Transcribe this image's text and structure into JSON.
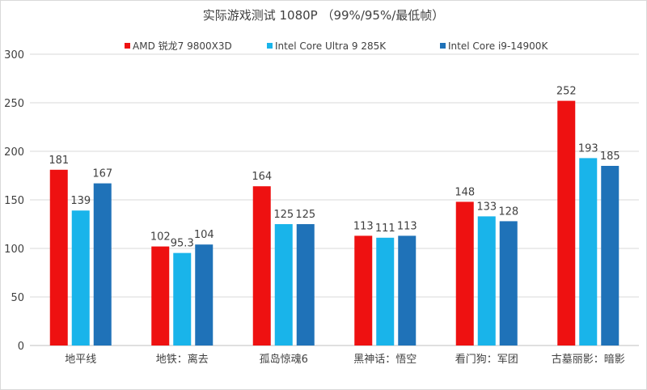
{
  "chart_data": {
    "type": "bar",
    "title": "实际游戏测试 1080P （99%/95%/最低帧）",
    "xlabel": "",
    "ylabel": "",
    "ylim": [
      0,
      300
    ],
    "yticks": [
      0,
      50,
      100,
      150,
      200,
      250,
      300
    ],
    "grid": true,
    "legend_position": "top",
    "categories": [
      "地平线",
      "地铁：离去",
      "孤岛惊魂6",
      "黑神话：悟空",
      "看门狗：军团",
      "古墓丽影：暗影"
    ],
    "series": [
      {
        "name": "AMD 锐龙7 9800X3D",
        "color": "#ee1111",
        "values": [
          181,
          102,
          164,
          113,
          148,
          252
        ]
      },
      {
        "name": "Intel Core Ultra 9 285K",
        "color": "#19b4ea",
        "values": [
          139,
          95.3,
          125,
          111,
          133,
          193
        ]
      },
      {
        "name": "Intel Core i9-14900K",
        "color": "#1f72b8",
        "values": [
          167,
          104,
          125,
          113,
          128,
          185
        ]
      }
    ]
  }
}
